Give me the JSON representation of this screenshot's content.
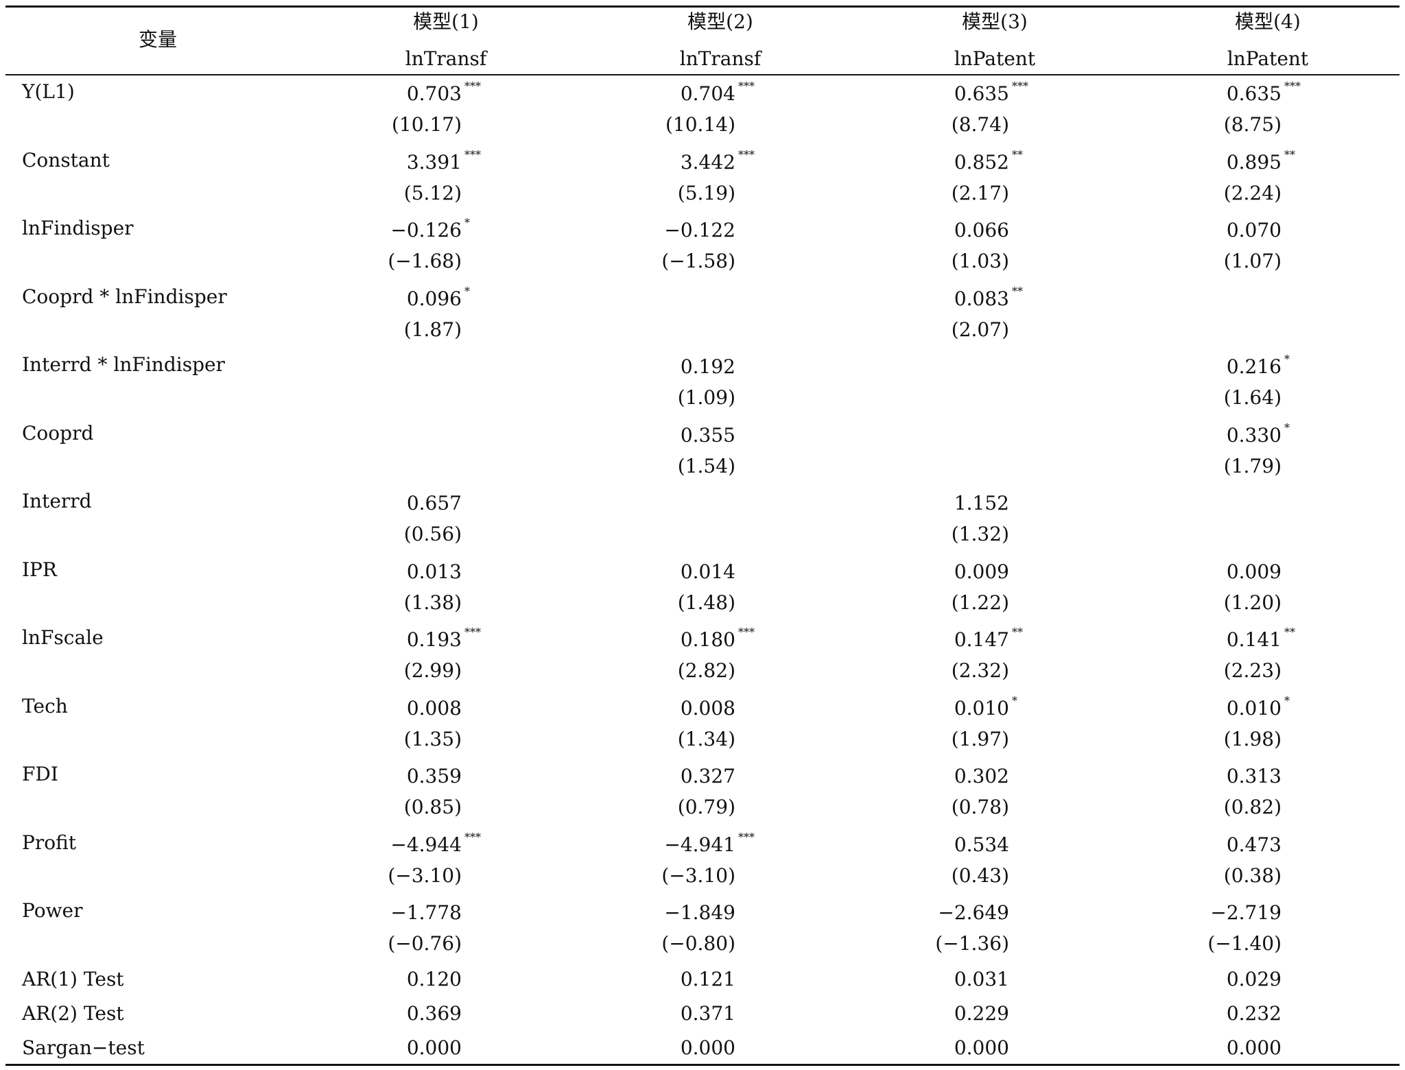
{
  "table": {
    "header": {
      "variable_label": "变量",
      "models": [
        {
          "name": "模型(1)",
          "dep": "lnTransf"
        },
        {
          "name": "模型(2)",
          "dep": "lnTransf"
        },
        {
          "name": "模型(3)",
          "dep": "lnPatent"
        },
        {
          "name": "模型(4)",
          "dep": "lnPatent"
        }
      ]
    },
    "rows": [
      {
        "label": "Y(L1)",
        "cells": [
          {
            "coef": "0.703",
            "sig": "***",
            "t": "(10.17)"
          },
          {
            "coef": "0.704",
            "sig": "***",
            "t": "(10.14)"
          },
          {
            "coef": "0.635",
            "sig": "***",
            "t": "(8.74)"
          },
          {
            "coef": "0.635",
            "sig": "***",
            "t": "(8.75)"
          }
        ]
      },
      {
        "label": "Constant",
        "cells": [
          {
            "coef": "3.391",
            "sig": "***",
            "t": "(5.12)"
          },
          {
            "coef": "3.442",
            "sig": "***",
            "t": "(5.19)"
          },
          {
            "coef": "0.852",
            "sig": "**",
            "t": "(2.17)"
          },
          {
            "coef": "0.895",
            "sig": "**",
            "t": "(2.24)"
          }
        ]
      },
      {
        "label": "lnFindisper",
        "cells": [
          {
            "coef": "−0.126",
            "sig": "*",
            "t": "(−1.68)"
          },
          {
            "coef": "−0.122",
            "sig": "",
            "t": "(−1.58)"
          },
          {
            "coef": "0.066",
            "sig": "",
            "t": "(1.03)"
          },
          {
            "coef": "0.070",
            "sig": "",
            "t": "(1.07)"
          }
        ]
      },
      {
        "label": "Cooprd * lnFindisper",
        "cells": [
          {
            "coef": "0.096",
            "sig": "*",
            "t": "(1.87)"
          },
          {
            "coef": "",
            "sig": "",
            "t": ""
          },
          {
            "coef": "0.083",
            "sig": "**",
            "t": "(2.07)"
          },
          {
            "coef": "",
            "sig": "",
            "t": ""
          }
        ]
      },
      {
        "label": "Interrd * lnFindisper",
        "cells": [
          {
            "coef": "",
            "sig": "",
            "t": ""
          },
          {
            "coef": "0.192",
            "sig": "",
            "t": "(1.09)"
          },
          {
            "coef": "",
            "sig": "",
            "t": ""
          },
          {
            "coef": "0.216",
            "sig": "*",
            "t": "(1.64)"
          }
        ]
      },
      {
        "label": "Cooprd",
        "cells": [
          {
            "coef": "",
            "sig": "",
            "t": ""
          },
          {
            "coef": "0.355",
            "sig": "",
            "t": "(1.54)"
          },
          {
            "coef": "",
            "sig": "",
            "t": ""
          },
          {
            "coef": "0.330",
            "sig": "*",
            "t": "(1.79)"
          }
        ]
      },
      {
        "label": "Interrd",
        "cells": [
          {
            "coef": "0.657",
            "sig": "",
            "t": "(0.56)"
          },
          {
            "coef": "",
            "sig": "",
            "t": ""
          },
          {
            "coef": "1.152",
            "sig": "",
            "t": "(1.32)"
          },
          {
            "coef": "",
            "sig": "",
            "t": ""
          }
        ]
      },
      {
        "label": "IPR",
        "cells": [
          {
            "coef": "0.013",
            "sig": "",
            "t": "(1.38)"
          },
          {
            "coef": "0.014",
            "sig": "",
            "t": "(1.48)"
          },
          {
            "coef": "0.009",
            "sig": "",
            "t": "(1.22)"
          },
          {
            "coef": "0.009",
            "sig": "",
            "t": "(1.20)"
          }
        ]
      },
      {
        "label": "lnFscale",
        "cells": [
          {
            "coef": "0.193",
            "sig": "***",
            "t": "(2.99)"
          },
          {
            "coef": "0.180",
            "sig": "***",
            "t": "(2.82)"
          },
          {
            "coef": "0.147",
            "sig": "**",
            "t": "(2.32)"
          },
          {
            "coef": "0.141",
            "sig": "**",
            "t": "(2.23)"
          }
        ]
      },
      {
        "label": "Tech",
        "cells": [
          {
            "coef": "0.008",
            "sig": "",
            "t": "(1.35)"
          },
          {
            "coef": "0.008",
            "sig": "",
            "t": "(1.34)"
          },
          {
            "coef": "0.010",
            "sig": "*",
            "t": "(1.97)"
          },
          {
            "coef": "0.010",
            "sig": "*",
            "t": "(1.98)"
          }
        ]
      },
      {
        "label": "FDI",
        "cells": [
          {
            "coef": "0.359",
            "sig": "",
            "t": "(0.85)"
          },
          {
            "coef": "0.327",
            "sig": "",
            "t": "(0.79)"
          },
          {
            "coef": "0.302",
            "sig": "",
            "t": "(0.78)"
          },
          {
            "coef": "0.313",
            "sig": "",
            "t": "(0.82)"
          }
        ]
      },
      {
        "label": "Profit",
        "cells": [
          {
            "coef": "−4.944",
            "sig": "***",
            "t": "(−3.10)"
          },
          {
            "coef": "−4.941",
            "sig": "***",
            "t": "(−3.10)"
          },
          {
            "coef": "0.534",
            "sig": "",
            "t": "(0.43)"
          },
          {
            "coef": "0.473",
            "sig": "",
            "t": "(0.38)"
          }
        ]
      },
      {
        "label": "Power",
        "cells": [
          {
            "coef": "−1.778",
            "sig": "",
            "t": "(−0.76)"
          },
          {
            "coef": "−1.849",
            "sig": "",
            "t": "(−0.80)"
          },
          {
            "coef": "−2.649",
            "sig": "",
            "t": "(−1.36)"
          },
          {
            "coef": "−2.719",
            "sig": "",
            "t": "(−1.40)"
          }
        ]
      }
    ],
    "tests": [
      {
        "label": "AR(1) Test",
        "values": [
          "0.120",
          "0.121",
          "0.031",
          "0.029"
        ]
      },
      {
        "label": "AR(2) Test",
        "values": [
          "0.369",
          "0.371",
          "0.229",
          "0.232"
        ]
      },
      {
        "label": "Sargan−test",
        "values": [
          "0.000",
          "0.000",
          "0.000",
          "0.000"
        ]
      }
    ]
  }
}
